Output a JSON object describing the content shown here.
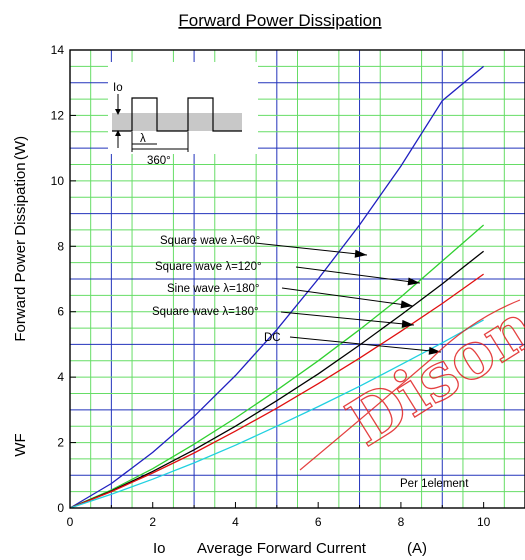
{
  "chart_data": {
    "type": "line",
    "title": "Forward Power Dissipation",
    "xlabel_symbol": "Io",
    "xlabel": "Average Forward Current",
    "xlabel_unit": "(A)",
    "ylabel_symbol": "WF",
    "ylabel": "Forward Power Dissipation",
    "ylabel_unit": "(W)",
    "xlim": [
      0,
      11
    ],
    "ylim": [
      0,
      14
    ],
    "xticks": [
      "0",
      "2",
      "4",
      "6",
      "8",
      "10"
    ],
    "yticks": [
      "0",
      "2",
      "4",
      "6",
      "8",
      "10",
      "12",
      "14"
    ],
    "grid": true,
    "series": [
      {
        "name": "Square wave λ=60°",
        "color": "#2020c0",
        "x": [
          0,
          1,
          2,
          3,
          4,
          5,
          6,
          7,
          8,
          9,
          10
        ],
        "y": [
          0,
          0.75,
          1.7,
          2.8,
          4.05,
          5.45,
          7.0,
          8.65,
          10.45,
          12.45,
          13.5
        ]
      },
      {
        "name": "Square wave λ=120°",
        "color": "#30d030",
        "x": [
          0,
          1,
          2,
          3,
          4,
          5,
          6,
          7,
          8,
          9,
          10
        ],
        "y": [
          0,
          0.55,
          1.2,
          1.95,
          2.75,
          3.6,
          4.5,
          5.45,
          6.45,
          7.55,
          8.65
        ]
      },
      {
        "name": "Sine wave λ=180°",
        "color": "#000000",
        "x": [
          0,
          1,
          2,
          3,
          4,
          5,
          6,
          7,
          8,
          9,
          10
        ],
        "y": [
          0,
          0.52,
          1.12,
          1.78,
          2.5,
          3.28,
          4.1,
          4.98,
          5.9,
          6.85,
          7.85
        ]
      },
      {
        "name": "Square wave λ=180°",
        "color": "#e01010",
        "x": [
          0,
          1,
          2,
          3,
          4,
          5,
          6,
          7,
          8,
          9,
          10
        ],
        "y": [
          0,
          0.5,
          1.07,
          1.68,
          2.35,
          3.05,
          3.8,
          4.58,
          5.4,
          6.25,
          7.15
        ]
      },
      {
        "name": "DC",
        "color": "#20d0e0",
        "x": [
          0,
          1,
          2,
          3,
          4,
          5,
          6,
          7,
          8,
          9,
          10
        ],
        "y": [
          0,
          0.42,
          0.88,
          1.38,
          1.92,
          2.5,
          3.1,
          3.72,
          4.38,
          5.05,
          5.75
        ]
      }
    ],
    "annotations": {
      "labels": [
        "Square wave  λ=60°",
        "Square wave  λ=120°",
        "Sine wave  λ=180°",
        "Square wave  λ=180°",
        "DC"
      ],
      "per_element": "Per 1element"
    },
    "inset": {
      "io_label": "Io",
      "lambda_label": "λ",
      "period_label": "360°"
    },
    "watermark_text": "Dison"
  }
}
